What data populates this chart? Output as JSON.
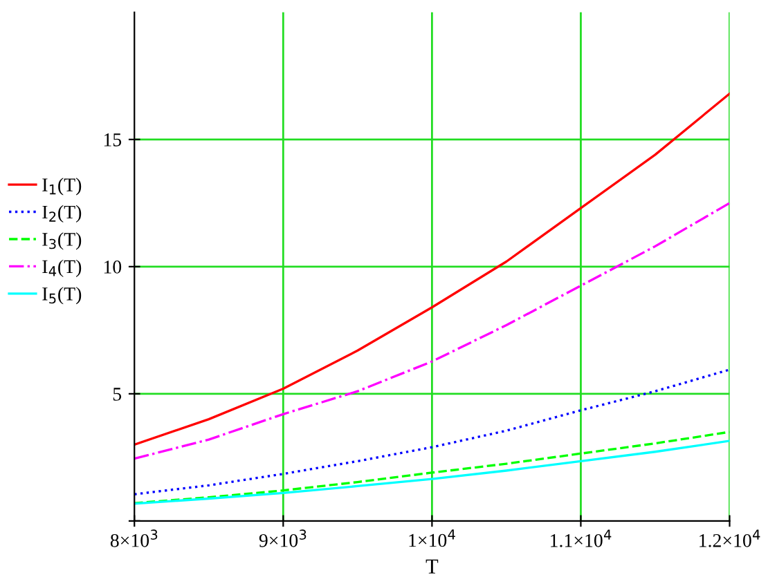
{
  "chart_data": {
    "type": "line",
    "xlabel": "T",
    "x": [
      8000,
      8500,
      9000,
      9500,
      10000,
      10500,
      11000,
      11500,
      12000
    ],
    "series": [
      {
        "name": "I$_{1}$(T)",
        "color": "#ff0000",
        "line_style": "solid",
        "values": [
          3.0,
          4.0,
          5.2,
          6.7,
          8.4,
          10.2,
          12.3,
          14.4,
          16.8
        ]
      },
      {
        "name": "I$_{2}$(T)",
        "color": "#0000ff",
        "line_style": "dotted",
        "values": [
          1.05,
          1.4,
          1.85,
          2.35,
          2.9,
          3.55,
          4.35,
          5.1,
          5.95
        ]
      },
      {
        "name": "I$_{3}$(T)",
        "color": "#00ff00",
        "line_style": "dashed",
        "values": [
          0.7,
          0.93,
          1.2,
          1.53,
          1.9,
          2.25,
          2.65,
          3.05,
          3.5
        ]
      },
      {
        "name": "I$_{4}$(T)",
        "color": "#ff00ff",
        "line_style": "dashdot",
        "values": [
          2.45,
          3.2,
          4.2,
          5.1,
          6.27,
          7.7,
          9.25,
          10.8,
          12.5
        ]
      },
      {
        "name": "I$_{5}$(T)",
        "color": "#00ffff",
        "line_style": "solid",
        "values": [
          0.68,
          0.88,
          1.1,
          1.37,
          1.65,
          1.98,
          2.35,
          2.72,
          3.15
        ]
      }
    ],
    "xlim": [
      8000,
      12000
    ],
    "ylim": [
      0,
      20
    ],
    "xticks": [
      {
        "value": 8000,
        "label": "8×10$^{3}$"
      },
      {
        "value": 9000,
        "label": "9×10$^{3}$"
      },
      {
        "value": 10000,
        "label": "1×10$^{4}$"
      },
      {
        "value": 11000,
        "label": "1.1×10$^{4}$"
      },
      {
        "value": 12000,
        "label": "1.2×10$^{4}$"
      }
    ],
    "yticks": [
      {
        "value": 0,
        "label": null
      },
      5,
      10,
      15
    ],
    "grid": true,
    "legend": "left",
    "marker": "none"
  }
}
